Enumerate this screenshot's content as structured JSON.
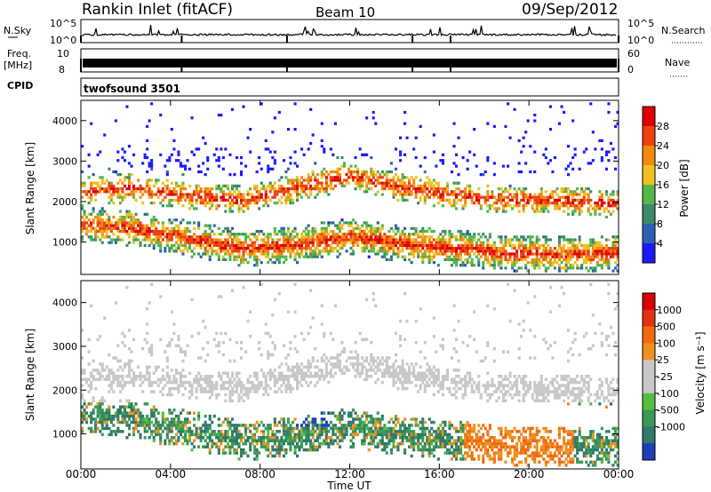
{
  "header": {
    "station": "Rankin Inlet (fitACF)",
    "beam": "Beam 10",
    "date": "09/Sep/2012"
  },
  "strip_nsky": {
    "label": "N.Sky",
    "left_ticks": [
      "10^5",
      "10^0"
    ],
    "right_ticks": [
      "10^5",
      "10^0"
    ],
    "right_label": "N.Search"
  },
  "strip_freq": {
    "label_line1": "Freq.",
    "label_line2": "[MHz]",
    "left_ticks": [
      "10",
      "8"
    ],
    "right_ticks": [
      "60",
      "0"
    ],
    "right_label": "Nave"
  },
  "strip_cpid": {
    "label": "CPID",
    "value": "twofsound 3501"
  },
  "colors": {
    "power_scale": [
      "#1a1aff",
      "#2f5fb0",
      "#3d8a6a",
      "#52b84a",
      "#f0c020",
      "#f08a10",
      "#ee4010",
      "#e00000"
    ],
    "velocity_scale": [
      "#1f3fb8",
      "#2f7a6a",
      "#3a9a55",
      "#55c040",
      "#c8c8c8",
      "#c8c8c8",
      "#f09020",
      "#f06a10",
      "#e53010",
      "#d80000"
    ]
  },
  "chart_data": [
    {
      "type": "heatmap",
      "panel": "power",
      "ylabel": "Slant Range [km]",
      "xlabel": "Time UT",
      "x_ticks": [
        "00:00",
        "04:00",
        "08:00",
        "12:00",
        "16:00",
        "20:00",
        "00:00"
      ],
      "y_ticks": [
        1000,
        2000,
        3000,
        4000
      ],
      "xlim_hours": [
        0,
        24
      ],
      "ylim_km": [
        200,
        4500
      ],
      "colorbar": {
        "label": "Power [dB]",
        "ticks": [
          4,
          8,
          12,
          16,
          20,
          24,
          28
        ]
      },
      "bands": [
        {
          "name": "lower echo band",
          "center_km": [
            1400,
            1300,
            1050,
            800,
            900,
            1100,
            900,
            800,
            700,
            650,
            700
          ]
        },
        {
          "name": "upper echo band",
          "center_km": [
            2200,
            2300,
            2100,
            2000,
            2300,
            2600,
            2300,
            2100,
            2000,
            2000,
            1900
          ]
        }
      ]
    },
    {
      "type": "heatmap",
      "panel": "velocity",
      "ylabel": "Slant Range [km]",
      "xlabel": "Time UT",
      "x_ticks": [
        "00:00",
        "04:00",
        "08:00",
        "12:00",
        "16:00",
        "20:00",
        "00:00"
      ],
      "y_ticks": [
        1000,
        2000,
        3000,
        4000
      ],
      "xlim_hours": [
        0,
        24
      ],
      "ylim_km": [
        200,
        4500
      ],
      "colorbar": {
        "label": "Velocity [m s⁻¹]",
        "ticks": [
          1000,
          500,
          100,
          25,
          -25,
          -100,
          -500,
          -1000
        ]
      }
    }
  ],
  "footer": {
    "xlabel": "Time UT"
  }
}
